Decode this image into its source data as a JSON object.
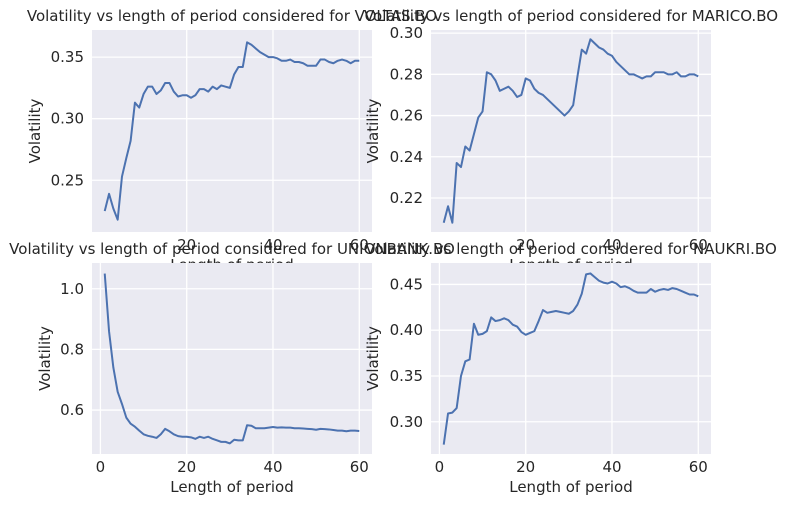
{
  "chart_data": [
    {
      "type": "line",
      "title": "Volatility vs length of period considered for VOLTAS.BO",
      "xlabel": "Length of period",
      "ylabel": "Volatility",
      "xlim": [
        -1.95,
        62.95
      ],
      "ylim": [
        0.208,
        0.372
      ],
      "xticks": [
        20,
        40,
        60
      ],
      "yticks": [
        0.25,
        0.3,
        0.35
      ],
      "yticklabels": [
        "0.25",
        "0.30",
        "0.35"
      ],
      "grid": true,
      "series": [
        {
          "color": "#4c72b0",
          "x": [
            1,
            2,
            3,
            4,
            5,
            6,
            7,
            8,
            9,
            10,
            11,
            12,
            13,
            14,
            15,
            16,
            17,
            18,
            19,
            20,
            21,
            22,
            23,
            24,
            25,
            26,
            27,
            28,
            29,
            30,
            31,
            32,
            33,
            34,
            35,
            36,
            37,
            38,
            39,
            40,
            41,
            42,
            43,
            44,
            45,
            46,
            47,
            48,
            49,
            50,
            51,
            52,
            53,
            54,
            55,
            56,
            57,
            58,
            59,
            60
          ],
          "y": [
            0.225,
            0.239,
            0.227,
            0.218,
            0.253,
            0.268,
            0.282,
            0.313,
            0.309,
            0.32,
            0.326,
            0.326,
            0.32,
            0.323,
            0.329,
            0.329,
            0.322,
            0.318,
            0.319,
            0.319,
            0.317,
            0.319,
            0.324,
            0.324,
            0.322,
            0.326,
            0.324,
            0.327,
            0.326,
            0.325,
            0.336,
            0.342,
            0.342,
            0.362,
            0.36,
            0.357,
            0.354,
            0.352,
            0.35,
            0.35,
            0.349,
            0.347,
            0.347,
            0.348,
            0.346,
            0.346,
            0.345,
            0.343,
            0.343,
            0.343,
            0.348,
            0.348,
            0.346,
            0.345,
            0.347,
            0.348,
            0.347,
            0.345,
            0.347,
            0.347
          ]
        }
      ]
    },
    {
      "type": "line",
      "title": "Volatility vs length of period considered for MARICO.BO",
      "xlabel": "Length of period",
      "ylabel": "Volatility",
      "xlim": [
        -1.95,
        62.95
      ],
      "ylim": [
        0.2035,
        0.3015
      ],
      "xticks": [
        20,
        40,
        60
      ],
      "yticks": [
        0.22,
        0.24,
        0.26,
        0.28,
        0.3
      ],
      "yticklabels": [
        "0.22",
        "0.24",
        "0.26",
        "0.28",
        "0.30"
      ],
      "grid": true,
      "series": [
        {
          "color": "#4c72b0",
          "x": [
            1,
            2,
            3,
            4,
            5,
            6,
            7,
            8,
            9,
            10,
            11,
            12,
            13,
            14,
            15,
            16,
            17,
            18,
            19,
            20,
            21,
            22,
            23,
            24,
            25,
            26,
            27,
            28,
            29,
            30,
            31,
            32,
            33,
            34,
            35,
            36,
            37,
            38,
            39,
            40,
            41,
            42,
            43,
            44,
            45,
            46,
            47,
            48,
            49,
            50,
            51,
            52,
            53,
            54,
            55,
            56,
            57,
            58,
            59,
            60
          ],
          "y": [
            0.208,
            0.216,
            0.208,
            0.237,
            0.235,
            0.245,
            0.243,
            0.251,
            0.259,
            0.262,
            0.281,
            0.28,
            0.277,
            0.272,
            0.273,
            0.274,
            0.272,
            0.269,
            0.27,
            0.278,
            0.277,
            0.273,
            0.271,
            0.27,
            0.268,
            0.266,
            0.264,
            0.262,
            0.26,
            0.262,
            0.265,
            0.279,
            0.292,
            0.29,
            0.297,
            0.295,
            0.293,
            0.292,
            0.29,
            0.289,
            0.286,
            0.284,
            0.282,
            0.28,
            0.28,
            0.279,
            0.278,
            0.279,
            0.279,
            0.281,
            0.281,
            0.281,
            0.28,
            0.28,
            0.281,
            0.279,
            0.279,
            0.28,
            0.28,
            0.279
          ]
        }
      ]
    },
    {
      "type": "line",
      "title": "Volatility vs length of period considered for UNIONBANK.BO",
      "xlabel": "Length of period",
      "ylabel": "Volatility",
      "xlim": [
        -1.95,
        62.95
      ],
      "ylim": [
        0.455,
        1.085
      ],
      "xticks": [
        0,
        20,
        40,
        60
      ],
      "yticks": [
        0.6,
        0.8,
        1.0
      ],
      "yticklabels": [
        "0.6",
        "0.8",
        "1.0"
      ],
      "grid": true,
      "series": [
        {
          "color": "#4c72b0",
          "x": [
            1,
            2,
            3,
            4,
            5,
            6,
            7,
            8,
            9,
            10,
            11,
            12,
            13,
            14,
            15,
            16,
            17,
            18,
            19,
            20,
            21,
            22,
            23,
            24,
            25,
            26,
            27,
            28,
            29,
            30,
            31,
            32,
            33,
            34,
            35,
            36,
            37,
            38,
            39,
            40,
            41,
            42,
            43,
            44,
            45,
            46,
            47,
            48,
            49,
            50,
            51,
            52,
            53,
            54,
            55,
            56,
            57,
            58,
            59,
            60
          ],
          "y": [
            1.05,
            0.86,
            0.74,
            0.66,
            0.62,
            0.575,
            0.555,
            0.545,
            0.532,
            0.52,
            0.515,
            0.512,
            0.508,
            0.52,
            0.538,
            0.53,
            0.52,
            0.514,
            0.512,
            0.512,
            0.51,
            0.505,
            0.512,
            0.508,
            0.512,
            0.505,
            0.5,
            0.495,
            0.495,
            0.49,
            0.502,
            0.5,
            0.5,
            0.55,
            0.548,
            0.54,
            0.54,
            0.54,
            0.542,
            0.544,
            0.542,
            0.543,
            0.542,
            0.542,
            0.54,
            0.54,
            0.539,
            0.538,
            0.537,
            0.535,
            0.538,
            0.537,
            0.536,
            0.534,
            0.532,
            0.532,
            0.53,
            0.532,
            0.532,
            0.531
          ]
        }
      ]
    },
    {
      "type": "line",
      "title": "Volatility vs length of period considered for NAUKRI.BO",
      "xlabel": "Length of period",
      "ylabel": "Volatility",
      "xlim": [
        -1.95,
        62.95
      ],
      "ylim": [
        0.2648,
        0.4734
      ],
      "xticks": [
        0,
        20,
        40,
        60
      ],
      "yticks": [
        0.3,
        0.35,
        0.4,
        0.45
      ],
      "yticklabels": [
        "0.30",
        "0.35",
        "0.40",
        "0.45"
      ],
      "grid": true,
      "series": [
        {
          "color": "#4c72b0",
          "x": [
            1,
            2,
            3,
            4,
            5,
            6,
            7,
            8,
            9,
            10,
            11,
            12,
            13,
            14,
            15,
            16,
            17,
            18,
            19,
            20,
            21,
            22,
            23,
            24,
            25,
            26,
            27,
            28,
            29,
            30,
            31,
            32,
            33,
            34,
            35,
            36,
            37,
            38,
            39,
            40,
            41,
            42,
            43,
            44,
            45,
            46,
            47,
            48,
            49,
            50,
            51,
            52,
            53,
            54,
            55,
            56,
            57,
            58,
            59,
            60
          ],
          "y": [
            0.275,
            0.309,
            0.31,
            0.315,
            0.35,
            0.366,
            0.368,
            0.407,
            0.395,
            0.396,
            0.399,
            0.414,
            0.41,
            0.411,
            0.413,
            0.411,
            0.406,
            0.404,
            0.398,
            0.395,
            0.397,
            0.399,
            0.41,
            0.422,
            0.419,
            0.42,
            0.421,
            0.42,
            0.419,
            0.418,
            0.421,
            0.428,
            0.44,
            0.461,
            0.462,
            0.458,
            0.454,
            0.452,
            0.451,
            0.453,
            0.451,
            0.447,
            0.448,
            0.446,
            0.443,
            0.441,
            0.441,
            0.441,
            0.445,
            0.442,
            0.444,
            0.445,
            0.444,
            0.446,
            0.445,
            0.443,
            0.441,
            0.439,
            0.439,
            0.437
          ]
        }
      ]
    }
  ]
}
